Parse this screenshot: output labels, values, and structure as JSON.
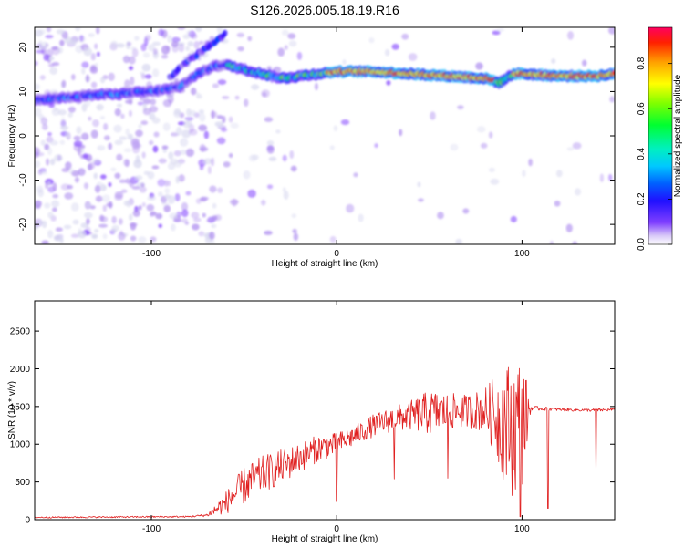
{
  "figure_title": "S126.2026.005.18.19.R16",
  "colors": {
    "snr_line": "#e02020",
    "axis": "#000000",
    "background": "#ffffff",
    "colormap": [
      "#d8d8f0",
      "#b090f0",
      "#8040ff",
      "#3010ff",
      "#0040ff",
      "#00b0ff",
      "#00f0c0",
      "#00ff40",
      "#80ff00",
      "#ffff00",
      "#ffa000",
      "#ff2000",
      "#ff0060"
    ]
  },
  "chart_data": [
    {
      "type": "heatmap",
      "title": "S126.2026.005.18.19.R16",
      "xlabel": "Height of straight line (km)",
      "ylabel": "Frequency (Hz)",
      "xlim": [
        -163,
        150
      ],
      "ylim": [
        -24.5,
        24.5
      ],
      "xticks": [
        -100,
        0,
        100
      ],
      "yticks": [
        -20,
        -10,
        0,
        10,
        20
      ],
      "colorbar": {
        "label": "Normalized spectral amplitude",
        "range": [
          0,
          0.96
        ],
        "ticks": [
          0.0,
          0.2,
          0.4,
          0.6,
          0.8
        ]
      },
      "ridge": {
        "description": "dominant frequency ridge",
        "x": [
          -163,
          -140,
          -120,
          -100,
          -85,
          -75,
          -65,
          -60,
          -50,
          -40,
          -30,
          -20,
          -10,
          0,
          20,
          40,
          60,
          80,
          88,
          95,
          100,
          120,
          140,
          150
        ],
        "y": [
          8,
          9,
          9.5,
          10,
          11,
          14,
          16,
          16,
          15,
          14,
          13,
          13.5,
          14,
          14.5,
          14.5,
          14,
          13.5,
          13,
          12,
          14,
          14,
          13.5,
          13.5,
          14
        ]
      },
      "secondary_ridge": {
        "x": [
          -90,
          -80,
          -70,
          -60
        ],
        "y": [
          13,
          17,
          20,
          23
        ]
      }
    },
    {
      "type": "line",
      "title": "",
      "xlabel": "Height of straight line (km)",
      "ylabel": "SNR (10 * v/v)",
      "xlim": [
        -163,
        150
      ],
      "ylim": [
        0,
        2900
      ],
      "xticks": [
        -100,
        0,
        100
      ],
      "yticks": [
        0,
        500,
        1000,
        1500,
        2000,
        2500
      ],
      "trend": {
        "x": [
          -163,
          -80,
          -70,
          -60,
          -50,
          -40,
          -30,
          -20,
          -10,
          0,
          10,
          20,
          30,
          40,
          50,
          60,
          70,
          80,
          85,
          90,
          95,
          100,
          105,
          120,
          140,
          150
        ],
        "y": [
          30,
          40,
          60,
          220,
          450,
          600,
          700,
          820,
          950,
          1000,
          1120,
          1250,
          1330,
          1380,
          1420,
          1430,
          1440,
          1450,
          1400,
          1300,
          1200,
          1300,
          1480,
          1460,
          1450,
          1460
        ]
      },
      "spread": {
        "x": [
          -163,
          -80,
          -70,
          -60,
          -50,
          -40,
          -30,
          -20,
          -10,
          0,
          10,
          20,
          30,
          40,
          50,
          60,
          70,
          80,
          85,
          90,
          95,
          100,
          105,
          120,
          140,
          150
        ],
        "y": [
          10,
          10,
          20,
          150,
          250,
          250,
          230,
          200,
          180,
          150,
          140,
          150,
          170,
          200,
          300,
          250,
          220,
          300,
          500,
          800,
          900,
          900,
          30,
          20,
          20,
          20
        ]
      },
      "dips": [
        {
          "x": 0,
          "y": 240
        },
        {
          "x": 31,
          "y": 540
        },
        {
          "x": 60,
          "y": 550
        },
        {
          "x": 99,
          "y": 40
        },
        {
          "x": 114,
          "y": 150
        },
        {
          "x": 140,
          "y": 550
        }
      ]
    }
  ]
}
